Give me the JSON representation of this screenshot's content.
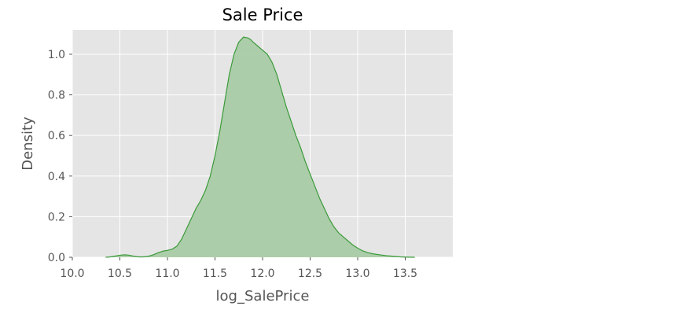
{
  "chart_data": {
    "type": "area",
    "title": "Sale Price",
    "xlabel": "log_SalePrice",
    "ylabel": "Density",
    "xlim": [
      10.0,
      14.0
    ],
    "ylim": [
      0.0,
      1.12
    ],
    "x_ticks": [
      10.0,
      10.5,
      11.0,
      11.5,
      12.0,
      12.5,
      13.0,
      13.5
    ],
    "x_tick_labels": [
      "10.0",
      "10.5",
      "11.0",
      "11.5",
      "12.0",
      "12.5",
      "13.0",
      "13.5"
    ],
    "y_ticks": [
      0.0,
      0.2,
      0.4,
      0.6,
      0.8,
      1.0
    ],
    "y_tick_labels": [
      "0.0",
      "0.2",
      "0.4",
      "0.6",
      "0.8",
      "1.0"
    ],
    "grid": true,
    "colors": {
      "plot_background": "#e5e5e5",
      "grid": "#ffffff",
      "line": "#3a9a3a",
      "fill": "#a9cba5"
    },
    "series": [
      {
        "x": [
          10.35,
          10.4,
          10.45,
          10.5,
          10.55,
          10.6,
          10.65,
          10.7,
          10.75,
          10.8,
          10.85,
          10.9,
          10.95,
          11.0,
          11.05,
          11.1,
          11.15,
          11.2,
          11.25,
          11.3,
          11.35,
          11.4,
          11.45,
          11.5,
          11.55,
          11.6,
          11.65,
          11.7,
          11.75,
          11.8,
          11.85,
          11.88,
          11.9,
          11.95,
          12.0,
          12.05,
          12.1,
          12.15,
          12.2,
          12.25,
          12.3,
          12.35,
          12.4,
          12.45,
          12.5,
          12.55,
          12.6,
          12.65,
          12.7,
          12.75,
          12.8,
          12.85,
          12.9,
          12.95,
          13.0,
          13.05,
          13.1,
          13.15,
          13.2,
          13.25,
          13.3,
          13.35,
          13.4,
          13.45,
          13.5,
          13.55,
          13.6
        ],
        "y": [
          0.0,
          0.002,
          0.006,
          0.01,
          0.012,
          0.01,
          0.005,
          0.002,
          0.002,
          0.005,
          0.012,
          0.022,
          0.03,
          0.034,
          0.04,
          0.055,
          0.09,
          0.14,
          0.19,
          0.24,
          0.28,
          0.33,
          0.4,
          0.5,
          0.62,
          0.76,
          0.9,
          1.0,
          1.06,
          1.085,
          1.08,
          1.07,
          1.06,
          1.04,
          1.02,
          1.0,
          0.96,
          0.9,
          0.82,
          0.74,
          0.67,
          0.6,
          0.54,
          0.47,
          0.41,
          0.35,
          0.29,
          0.24,
          0.19,
          0.15,
          0.12,
          0.1,
          0.08,
          0.06,
          0.045,
          0.032,
          0.024,
          0.018,
          0.014,
          0.011,
          0.008,
          0.006,
          0.004,
          0.002,
          0.001,
          0.0005,
          0.0
        ]
      }
    ]
  }
}
